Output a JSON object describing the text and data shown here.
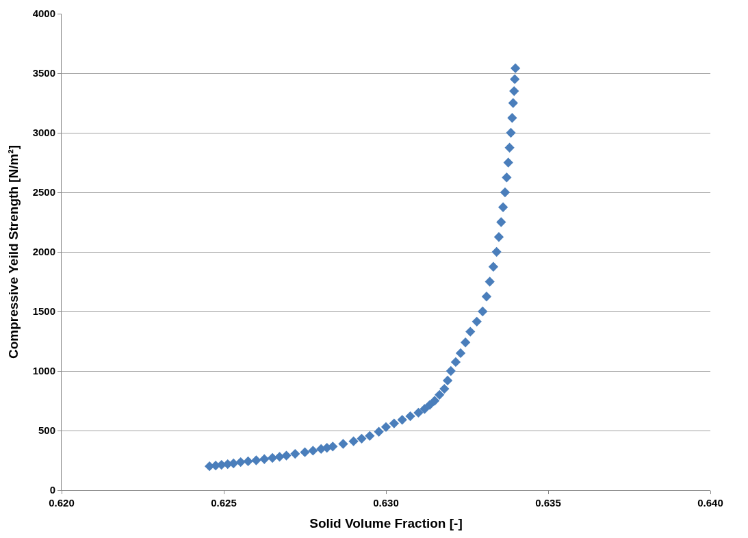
{
  "chart_data": {
    "type": "scatter",
    "xlabel": "Solid Volume Fraction [-]",
    "ylabel": "Compressive Yeild Strength [N/m²]",
    "xlim": [
      0.62,
      0.64
    ],
    "xticks": [
      {
        "value": 0.62,
        "label": "0.620"
      },
      {
        "value": 0.625,
        "label": "0.625"
      },
      {
        "value": 0.63,
        "label": "0.630"
      },
      {
        "value": 0.635,
        "label": "0.635"
      },
      {
        "value": 0.64,
        "label": "0.640"
      }
    ],
    "ylim": [
      0,
      4000
    ],
    "yticks": [
      0,
      500,
      1000,
      1500,
      2000,
      2500,
      3000,
      3500,
      4000
    ],
    "grid": "y",
    "marker": "diamond",
    "series": [
      {
        "color": "#4a7ebb",
        "x": [
          0.62456,
          0.62475,
          0.62493,
          0.62512,
          0.6253,
          0.62552,
          0.62575,
          0.626,
          0.62625,
          0.6265,
          0.62672,
          0.62693,
          0.6272,
          0.6275,
          0.62775,
          0.628,
          0.62818,
          0.62836,
          0.62868,
          0.629,
          0.62925,
          0.6295,
          0.62978,
          0.63,
          0.63025,
          0.6305,
          0.63075,
          0.631,
          0.63119,
          0.63135,
          0.6315,
          0.63165,
          0.6318,
          0.6319,
          0.632,
          0.63215,
          0.6323,
          0.63245,
          0.6326,
          0.6328,
          0.63298,
          0.6331,
          0.6332,
          0.63331,
          0.63341,
          0.63348,
          0.63355,
          0.63361,
          0.63367,
          0.63372,
          0.63377,
          0.63381,
          0.63385,
          0.63389,
          0.63392,
          0.63395,
          0.63397,
          0.63399
        ],
        "values": [
          200,
          206,
          212,
          218,
          224,
          235,
          242,
          250,
          260,
          270,
          280,
          290,
          304,
          318,
          331,
          345,
          355,
          366,
          388,
          410,
          432,
          455,
          490,
          530,
          560,
          590,
          620,
          650,
          681,
          715,
          750,
          800,
          850,
          920,
          1000,
          1075,
          1150,
          1240,
          1330,
          1415,
          1500,
          1625,
          1750,
          1875,
          2000,
          2125,
          2250,
          2375,
          2500,
          2625,
          2750,
          2875,
          3000,
          3125,
          3250,
          3350,
          3450,
          3542
        ]
      }
    ]
  }
}
